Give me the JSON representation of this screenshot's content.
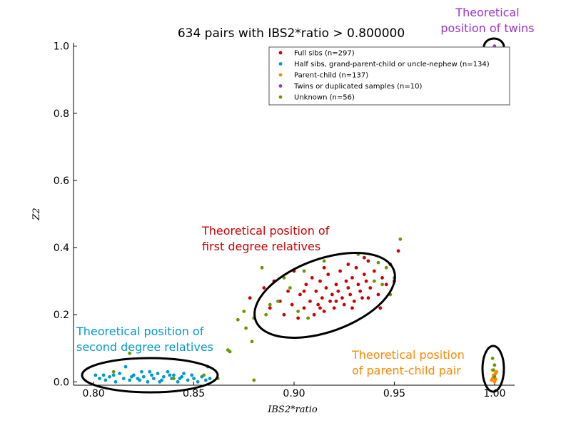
{
  "chart_data": {
    "type": "scatter",
    "title": "634 pairs with IBS2*ratio > 0.800000",
    "xlabel": "IBS2*ratio",
    "ylabel": "Z2",
    "xlim": [
      0.79,
      1.01
    ],
    "ylim": [
      -0.01,
      1.01
    ],
    "x_ticks": [
      "0.80",
      "0.85",
      "0.90",
      "0.95",
      "1.00"
    ],
    "y_ticks": [
      "0.0",
      "0.2",
      "0.4",
      "0.6",
      "0.8",
      "1.0"
    ],
    "grid": false,
    "legend_position": "top-right",
    "series": [
      {
        "name": "Full sibs (n=297)",
        "color": "#cc0000",
        "points": [
          [
            0.878,
            0.25
          ],
          [
            0.885,
            0.28
          ],
          [
            0.888,
            0.22
          ],
          [
            0.89,
            0.3
          ],
          [
            0.893,
            0.24
          ],
          [
            0.895,
            0.2
          ],
          [
            0.897,
            0.27
          ],
          [
            0.899,
            0.23
          ],
          [
            0.9,
            0.33
          ],
          [
            0.902,
            0.19
          ],
          [
            0.903,
            0.26
          ],
          [
            0.905,
            0.22
          ],
          [
            0.906,
            0.29
          ],
          [
            0.908,
            0.24
          ],
          [
            0.909,
            0.31
          ],
          [
            0.91,
            0.2
          ],
          [
            0.911,
            0.27
          ],
          [
            0.912,
            0.23
          ],
          [
            0.913,
            0.3
          ],
          [
            0.914,
            0.25
          ],
          [
            0.915,
            0.21
          ],
          [
            0.916,
            0.28
          ],
          [
            0.917,
            0.32
          ],
          [
            0.918,
            0.24
          ],
          [
            0.919,
            0.26
          ],
          [
            0.92,
            0.22
          ],
          [
            0.921,
            0.29
          ],
          [
            0.922,
            0.27
          ],
          [
            0.923,
            0.33
          ],
          [
            0.924,
            0.25
          ],
          [
            0.925,
            0.23
          ],
          [
            0.926,
            0.3
          ],
          [
            0.927,
            0.28
          ],
          [
            0.928,
            0.26
          ],
          [
            0.929,
            0.31
          ],
          [
            0.93,
            0.24
          ],
          [
            0.931,
            0.34
          ],
          [
            0.932,
            0.29
          ],
          [
            0.933,
            0.27
          ],
          [
            0.934,
            0.25
          ],
          [
            0.935,
            0.32
          ],
          [
            0.936,
            0.3
          ],
          [
            0.937,
            0.36
          ],
          [
            0.938,
            0.28
          ],
          [
            0.94,
            0.33
          ],
          [
            0.942,
            0.26
          ],
          [
            0.944,
            0.31
          ],
          [
            0.946,
            0.29
          ],
          [
            0.948,
            0.35
          ],
          [
            0.95,
            0.3
          ],
          [
            0.952,
            0.39
          ],
          [
            0.935,
            0.37
          ],
          [
            0.927,
            0.35
          ],
          [
            0.915,
            0.34
          ],
          [
            0.905,
            0.27
          ],
          [
            0.913,
            0.22
          ],
          [
            0.921,
            0.24
          ],
          [
            0.929,
            0.22
          ],
          [
            0.937,
            0.25
          ],
          [
            0.943,
            0.22
          ]
        ]
      },
      {
        "name": "Half sibs, grand-parent-child or uncle-nephew (n=134)",
        "color": "#0099cc",
        "points": [
          [
            0.801,
            0.02
          ],
          [
            0.803,
            0.01
          ],
          [
            0.805,
            0.02
          ],
          [
            0.806,
            0.005
          ],
          [
            0.808,
            0.015
          ],
          [
            0.81,
            0.02
          ],
          [
            0.811,
            0.0
          ],
          [
            0.813,
            0.025
          ],
          [
            0.815,
            0.01
          ],
          [
            0.816,
            0.045
          ],
          [
            0.818,
            0.005
          ],
          [
            0.82,
            0.02
          ],
          [
            0.822,
            0.01
          ],
          [
            0.824,
            0.03
          ],
          [
            0.825,
            0.015
          ],
          [
            0.827,
            0.0
          ],
          [
            0.829,
            0.02
          ],
          [
            0.83,
            0.01
          ],
          [
            0.832,
            0.025
          ],
          [
            0.834,
            0.005
          ],
          [
            0.835,
            0.015
          ],
          [
            0.837,
            0.03
          ],
          [
            0.839,
            0.01
          ],
          [
            0.84,
            0.02
          ],
          [
            0.842,
            0.0
          ],
          [
            0.844,
            0.015
          ],
          [
            0.845,
            0.025
          ],
          [
            0.847,
            0.005
          ],
          [
            0.849,
            0.02
          ],
          [
            0.85,
            0.01
          ],
          [
            0.852,
            0.0
          ],
          [
            0.854,
            0.015
          ],
          [
            0.856,
            0.005
          ],
          [
            0.858,
            0.01
          ],
          [
            0.819,
            0.015
          ],
          [
            0.823,
            0.005
          ],
          [
            0.828,
            0.03
          ],
          [
            0.833,
            0.0
          ],
          [
            0.838,
            0.02
          ],
          [
            0.843,
            0.01
          ],
          [
            0.857,
            0.045
          ]
        ]
      },
      {
        "name": "Parent-child (n=137)",
        "color": "#ff8800",
        "points": [
          [
            0.9985,
            0.005
          ],
          [
            0.999,
            0.01
          ],
          [
            0.9995,
            0.015
          ],
          [
            1.0,
            0.02
          ],
          [
            1.0005,
            0.025
          ],
          [
            1.001,
            0.03
          ],
          [
            0.999,
            0.035
          ],
          [
            1.0,
            0.0
          ],
          [
            1.0005,
            0.008
          ],
          [
            0.9995,
            0.02
          ]
        ]
      },
      {
        "name": "Twins or duplicated samples (n=10)",
        "color": "#9933cc",
        "points": [
          [
            1.0,
            1.0
          ]
        ]
      },
      {
        "name": "Unknown (n=56)",
        "color": "#669900",
        "points": [
          [
            0.81,
            0.03
          ],
          [
            0.818,
            0.085
          ],
          [
            0.84,
            0.01
          ],
          [
            0.855,
            0.02
          ],
          [
            0.862,
            0.01
          ],
          [
            0.867,
            0.095
          ],
          [
            0.868,
            0.09
          ],
          [
            0.872,
            0.185
          ],
          [
            0.875,
            0.21
          ],
          [
            0.876,
            0.16
          ],
          [
            0.879,
            0.12
          ],
          [
            0.88,
            0.19
          ],
          [
            0.88,
            0.005
          ],
          [
            0.884,
            0.34
          ],
          [
            0.886,
            0.2
          ],
          [
            0.888,
            0.23
          ],
          [
            0.892,
            0.24
          ],
          [
            0.895,
            0.31
          ],
          [
            0.898,
            0.28
          ],
          [
            0.902,
            0.21
          ],
          [
            0.905,
            0.33
          ],
          [
            0.907,
            0.19
          ],
          [
            0.915,
            0.36
          ],
          [
            0.932,
            0.38
          ],
          [
            0.94,
            0.3
          ],
          [
            0.942,
            0.355
          ],
          [
            0.944,
            0.29
          ],
          [
            0.946,
            0.34
          ],
          [
            0.948,
            0.26
          ],
          [
            0.95,
            0.31
          ],
          [
            0.953,
            0.425
          ],
          [
            0.999,
            0.07
          ],
          [
            1.0,
            0.05
          ],
          [
            0.9995,
            0.035
          ],
          [
            1.0,
            0.015
          ]
        ]
      }
    ],
    "annotations": [
      {
        "text": [
          "Theoretical",
          "position of twins"
        ],
        "color": "#9933cc"
      },
      {
        "text": [
          "Theoretical position of",
          "first degree relatives"
        ],
        "color": "#cc0000"
      },
      {
        "text": [
          "Theoretical position of",
          "second degree relatives"
        ],
        "color": "#0099cc"
      },
      {
        "text": [
          "Theoretical position",
          "of parent-child pair"
        ],
        "color": "#ff8800"
      }
    ]
  }
}
